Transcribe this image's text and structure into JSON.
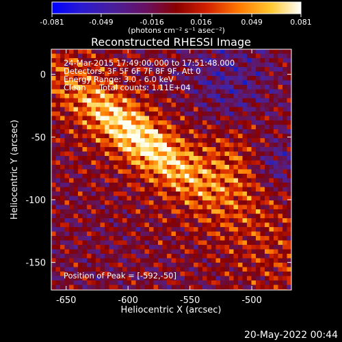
{
  "chart_data": {
    "type": "heatmap",
    "title": "Reconstructed RHESSI Image",
    "xlabel": "Heliocentric X (arcsec)",
    "ylabel": "Heliocentric Y (arcsec)",
    "xlim": [
      -662,
      -468
    ],
    "ylim": [
      -172,
      20
    ],
    "x_ticks": [
      -650,
      -600,
      -550,
      -500
    ],
    "x_tick_labels": [
      "-650",
      "-600",
      "-550",
      "-500"
    ],
    "y_ticks": [
      0,
      -50,
      -100,
      -150
    ],
    "y_tick_labels": [
      "0",
      "-50",
      "-100",
      "-150"
    ],
    "colorbar": {
      "min": -0.081,
      "max": 0.081,
      "tick_values": [
        -0.081,
        -0.049,
        -0.016,
        0.016,
        0.049,
        0.081
      ],
      "tick_labels": [
        "-0.081",
        "-0.049",
        "-0.016",
        "0.016",
        "0.049",
        "0.081"
      ],
      "units_label": "(photons cm⁻² s⁻¹ asec⁻²)",
      "colormap": "blue-purple-red-orange-yellow-white"
    },
    "annotations": {
      "time_range": "24-Mar-2015 17:49:00.000 to 17:51:48.000",
      "detectors": "Detectors: 3F 5F 6F 7F 8F 9F, Att 0",
      "energy_range": "Energy Range: 3.0 - 6.0 keV",
      "method": "Clean",
      "total_counts": "Total counts: 1.11E+04",
      "peak_position": "Position of Peak = [-592,-50]"
    },
    "peak": {
      "x": -592,
      "y": -50
    }
  },
  "footer_date": "20-May-2022 00:44"
}
